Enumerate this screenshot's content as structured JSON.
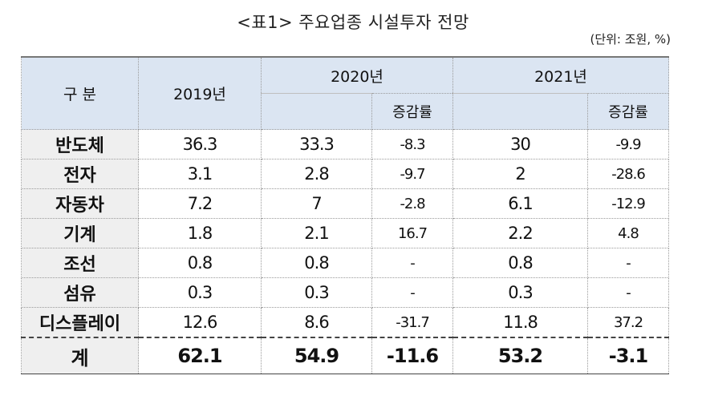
{
  "title": "<표1> 주요업종 시설투자 전망",
  "unit": "(단위: 조원, %)",
  "header": {
    "category": "구 분",
    "y2019": "2019년",
    "y2020": "2020년",
    "y2021": "2021년",
    "rate_2020": "증감률",
    "rate_2021": "증감률"
  },
  "rows": [
    {
      "label": "반도체",
      "v2019": "36.3",
      "v2020": "33.3",
      "r2020": "-8.3",
      "v2021": "30",
      "r2021": "-9.9"
    },
    {
      "label": "전자",
      "v2019": "3.1",
      "v2020": "2.8",
      "r2020": "-9.7",
      "v2021": "2",
      "r2021": "-28.6"
    },
    {
      "label": "자동차",
      "v2019": "7.2",
      "v2020": "7",
      "r2020": "-2.8",
      "v2021": "6.1",
      "r2021": "-12.9"
    },
    {
      "label": "기계",
      "v2019": "1.8",
      "v2020": "2.1",
      "r2020": "16.7",
      "v2021": "2.2",
      "r2021": "4.8"
    },
    {
      "label": "조선",
      "v2019": "0.8",
      "v2020": "0.8",
      "r2020": "-",
      "v2021": "0.8",
      "r2021": "-"
    },
    {
      "label": "섬유",
      "v2019": "0.3",
      "v2020": "0.3",
      "r2020": "-",
      "v2021": "0.3",
      "r2021": "-"
    },
    {
      "label": "디스플레이",
      "v2019": "12.6",
      "v2020": "8.6",
      "r2020": "-31.7",
      "v2021": "11.8",
      "r2021": "37.2"
    }
  ],
  "total": {
    "label": "계",
    "v2019": "62.1",
    "v2020": "54.9",
    "r2020": "-11.6",
    "v2021": "53.2",
    "r2021": "-3.1"
  }
}
